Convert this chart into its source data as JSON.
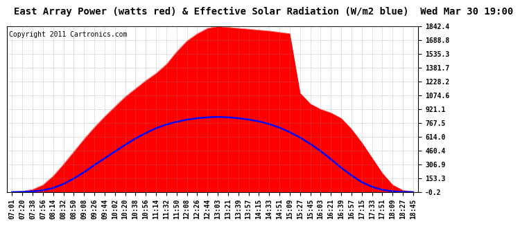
{
  "title": "East Array Power (watts red) & Effective Solar Radiation (W/m2 blue)  Wed Mar 30 19:00",
  "copyright_text": "Copyright 2011 Cartronics.com",
  "y_min": -0.2,
  "y_max": 1842.4,
  "y_ticks": [
    1842.4,
    1688.8,
    1535.3,
    1381.7,
    1228.2,
    1074.6,
    921.1,
    767.5,
    614.0,
    460.4,
    306.9,
    153.3,
    -0.2
  ],
  "x_labels": [
    "07:01",
    "07:20",
    "07:38",
    "07:56",
    "08:14",
    "08:32",
    "08:50",
    "09:08",
    "09:26",
    "09:44",
    "10:02",
    "10:20",
    "10:38",
    "10:56",
    "11:14",
    "11:32",
    "11:50",
    "12:08",
    "12:26",
    "12:44",
    "13:03",
    "13:21",
    "13:39",
    "13:57",
    "14:15",
    "14:33",
    "14:51",
    "15:09",
    "15:27",
    "15:45",
    "16:03",
    "16:21",
    "16:39",
    "16:57",
    "17:15",
    "17:33",
    "17:51",
    "18:09",
    "18:27",
    "18:45"
  ],
  "background_color": "#ffffff",
  "plot_background": "#ffffff",
  "red_color": "#ff0000",
  "blue_color": "#0000ff",
  "grid_color": "#888888",
  "title_fontsize": 10,
  "tick_fontsize": 7,
  "copyright_fontsize": 7,
  "power_vals": [
    2,
    8,
    30,
    80,
    180,
    310,
    450,
    590,
    720,
    840,
    950,
    1060,
    1150,
    1240,
    1320,
    1420,
    1560,
    1680,
    1760,
    1820,
    1840,
    1830,
    1820,
    1810,
    1800,
    1790,
    1775,
    1760,
    1100,
    980,
    920,
    880,
    820,
    700,
    550,
    380,
    210,
    80,
    20,
    3
  ],
  "solar_vals": [
    0,
    2,
    8,
    20,
    45,
    90,
    150,
    220,
    300,
    375,
    450,
    525,
    595,
    655,
    710,
    750,
    780,
    805,
    820,
    830,
    835,
    830,
    820,
    805,
    785,
    755,
    715,
    665,
    605,
    535,
    455,
    365,
    270,
    185,
    110,
    58,
    25,
    8,
    2,
    0
  ]
}
